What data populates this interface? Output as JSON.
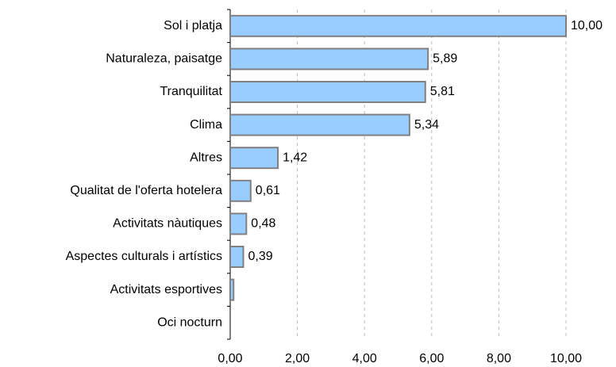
{
  "chart_data": {
    "type": "barh",
    "categories": [
      "Sol i platja",
      "Naturaleza, paisatge",
      "Tranquilitat",
      "Clima",
      "Altres",
      "Qualitat de l'oferta hotelera",
      "Activitats nàutiques",
      "Aspectes culturals i artístics",
      "Activitats esportives",
      "Oci nocturn"
    ],
    "values": [
      10.0,
      5.89,
      5.81,
      5.34,
      1.42,
      0.61,
      0.48,
      0.39,
      0.1,
      0
    ],
    "value_labels": [
      "10,00",
      "5,89",
      "5,81",
      "5,34",
      "1,42",
      "0,61",
      "0,48",
      "0,39",
      null,
      null
    ],
    "color": "#99ccff",
    "xlim": [
      0,
      10
    ],
    "xticks": [
      {
        "value": 0,
        "label": "0,00"
      },
      {
        "value": 2,
        "label": "2,00"
      },
      {
        "value": 4,
        "label": "4,00"
      },
      {
        "value": 6,
        "label": "6,00"
      },
      {
        "value": 8,
        "label": "8,00"
      },
      {
        "value": 10,
        "label": "10,00"
      }
    ],
    "grid": true
  }
}
